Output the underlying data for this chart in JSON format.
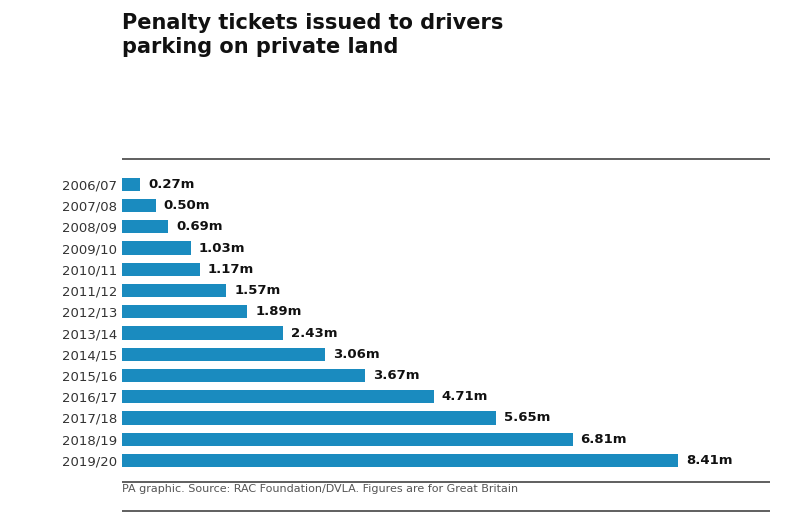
{
  "title": "Penalty tickets issued to drivers\nparking on private land",
  "categories": [
    "2006/07",
    "2007/08",
    "2008/09",
    "2009/10",
    "2010/11",
    "2011/12",
    "2012/13",
    "2013/14",
    "2014/15",
    "2015/16",
    "2016/17",
    "2017/18",
    "2018/19",
    "2019/20"
  ],
  "values": [
    0.27,
    0.5,
    0.69,
    1.03,
    1.17,
    1.57,
    1.89,
    2.43,
    3.06,
    3.67,
    4.71,
    5.65,
    6.81,
    8.41
  ],
  "labels": [
    "0.27m",
    "0.50m",
    "0.69m",
    "1.03m",
    "1.17m",
    "1.57m",
    "1.89m",
    "2.43m",
    "3.06m",
    "3.67m",
    "4.71m",
    "5.65m",
    "6.81m",
    "8.41m"
  ],
  "bar_color": "#1a8bbf",
  "background_color": "#ffffff",
  "title_fontsize": 15,
  "label_fontsize": 9.5,
  "tick_fontsize": 9.5,
  "footer": "PA graphic. Source: RAC Foundation/DVLA. Figures are for Great Britain",
  "footer_fontsize": 8,
  "xlim": [
    0,
    9.8
  ],
  "bar_height": 0.62
}
